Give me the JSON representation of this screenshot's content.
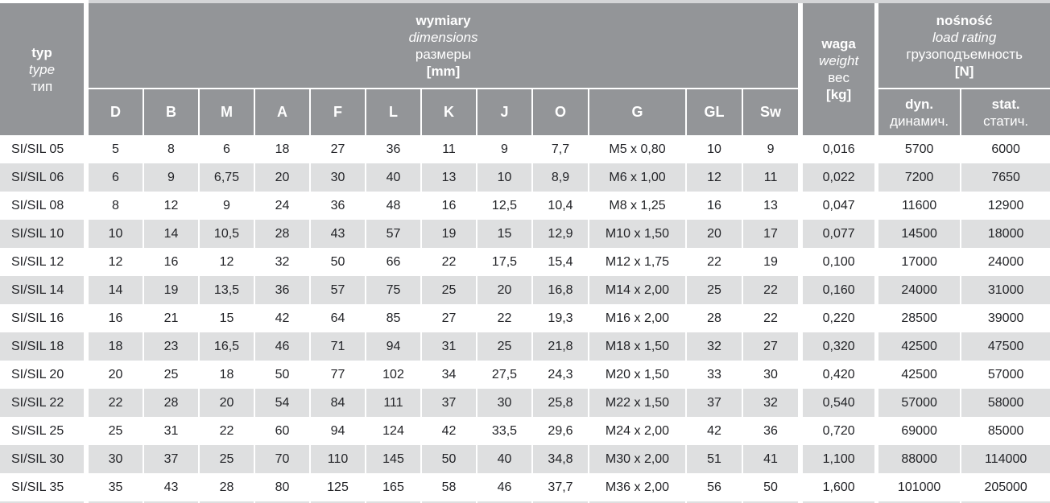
{
  "colors": {
    "header_bg": "#939598",
    "row_alt_bg": "#dedfe0",
    "body_text": "#232428",
    "header_text": "#ffffff"
  },
  "table": {
    "corner": {
      "title": "typ",
      "subtitle_en": "type",
      "subtitle_ru": "тип"
    },
    "dimensions_group": {
      "title": "wymiary",
      "subtitle_en": "dimensions",
      "subtitle_ru": "размеры",
      "unit": "[mm]"
    },
    "weight": {
      "title": "waga",
      "subtitle_en": "weight",
      "subtitle_ru": "вес",
      "unit": "[kg]"
    },
    "load_group": {
      "title": "nośność",
      "subtitle_en": "load rating",
      "subtitle_ru": "грузоподъемность",
      "unit": "[N]"
    },
    "dim_columns": [
      "D",
      "B",
      "M",
      "A",
      "F",
      "L",
      "K",
      "J",
      "O",
      "G",
      "GL",
      "Sw"
    ],
    "load_columns": [
      {
        "label": "dyn.",
        "sublabel": "динамич."
      },
      {
        "label": "stat.",
        "sublabel": "статич."
      }
    ],
    "rows": [
      {
        "typ": "SI/SIL 05",
        "values": [
          "5",
          "8",
          "6",
          "18",
          "27",
          "36",
          "11",
          "9",
          "7,7",
          "M5 x 0,80",
          "10",
          "9",
          "0,016",
          "5700",
          "6000"
        ]
      },
      {
        "typ": "SI/SIL 06",
        "values": [
          "6",
          "9",
          "6,75",
          "20",
          "30",
          "40",
          "13",
          "10",
          "8,9",
          "M6 x 1,00",
          "12",
          "11",
          "0,022",
          "7200",
          "7650"
        ]
      },
      {
        "typ": "SI/SIL 08",
        "values": [
          "8",
          "12",
          "9",
          "24",
          "36",
          "48",
          "16",
          "12,5",
          "10,4",
          "M8 x 1,25",
          "16",
          "13",
          "0,047",
          "11600",
          "12900"
        ]
      },
      {
        "typ": "SI/SIL 10",
        "values": [
          "10",
          "14",
          "10,5",
          "28",
          "43",
          "57",
          "19",
          "15",
          "12,9",
          "M10 x 1,50",
          "20",
          "17",
          "0,077",
          "14500",
          "18000"
        ]
      },
      {
        "typ": "SI/SIL 12",
        "values": [
          "12",
          "16",
          "12",
          "32",
          "50",
          "66",
          "22",
          "17,5",
          "15,4",
          "M12 x 1,75",
          "22",
          "19",
          "0,100",
          "17000",
          "24000"
        ]
      },
      {
        "typ": "SI/SIL 14",
        "values": [
          "14",
          "19",
          "13,5",
          "36",
          "57",
          "75",
          "25",
          "20",
          "16,8",
          "M14 x 2,00",
          "25",
          "22",
          "0,160",
          "24000",
          "31000"
        ]
      },
      {
        "typ": "SI/SIL 16",
        "values": [
          "16",
          "21",
          "15",
          "42",
          "64",
          "85",
          "27",
          "22",
          "19,3",
          "M16 x 2,00",
          "28",
          "22",
          "0,220",
          "28500",
          "39000"
        ]
      },
      {
        "typ": "SI/SIL 18",
        "values": [
          "18",
          "23",
          "16,5",
          "46",
          "71",
          "94",
          "31",
          "25",
          "21,8",
          "M18 x 1,50",
          "32",
          "27",
          "0,320",
          "42500",
          "47500"
        ]
      },
      {
        "typ": "SI/SIL 20",
        "values": [
          "20",
          "25",
          "18",
          "50",
          "77",
          "102",
          "34",
          "27,5",
          "24,3",
          "M20 x 1,50",
          "33",
          "30",
          "0,420",
          "42500",
          "57000"
        ]
      },
      {
        "typ": "SI/SIL 22",
        "values": [
          "22",
          "28",
          "20",
          "54",
          "84",
          "111",
          "37",
          "30",
          "25,8",
          "M22 x 1,50",
          "37",
          "32",
          "0,540",
          "57000",
          "58000"
        ]
      },
      {
        "typ": "SI/SIL 25",
        "values": [
          "25",
          "31",
          "22",
          "60",
          "94",
          "124",
          "42",
          "33,5",
          "29,6",
          "M24 x 2,00",
          "42",
          "36",
          "0,720",
          "69000",
          "85000"
        ]
      },
      {
        "typ": "SI/SIL 30",
        "values": [
          "30",
          "37",
          "25",
          "70",
          "110",
          "145",
          "50",
          "40",
          "34,8",
          "M30 x 2,00",
          "51",
          "41",
          "1,100",
          "88000",
          "114000"
        ]
      },
      {
        "typ": "SI/SIL 35",
        "values": [
          "35",
          "43",
          "28",
          "80",
          "125",
          "165",
          "58",
          "46",
          "37,7",
          "M36 x 2,00",
          "56",
          "50",
          "1,600",
          "101000",
          "205000"
        ]
      }
    ]
  }
}
